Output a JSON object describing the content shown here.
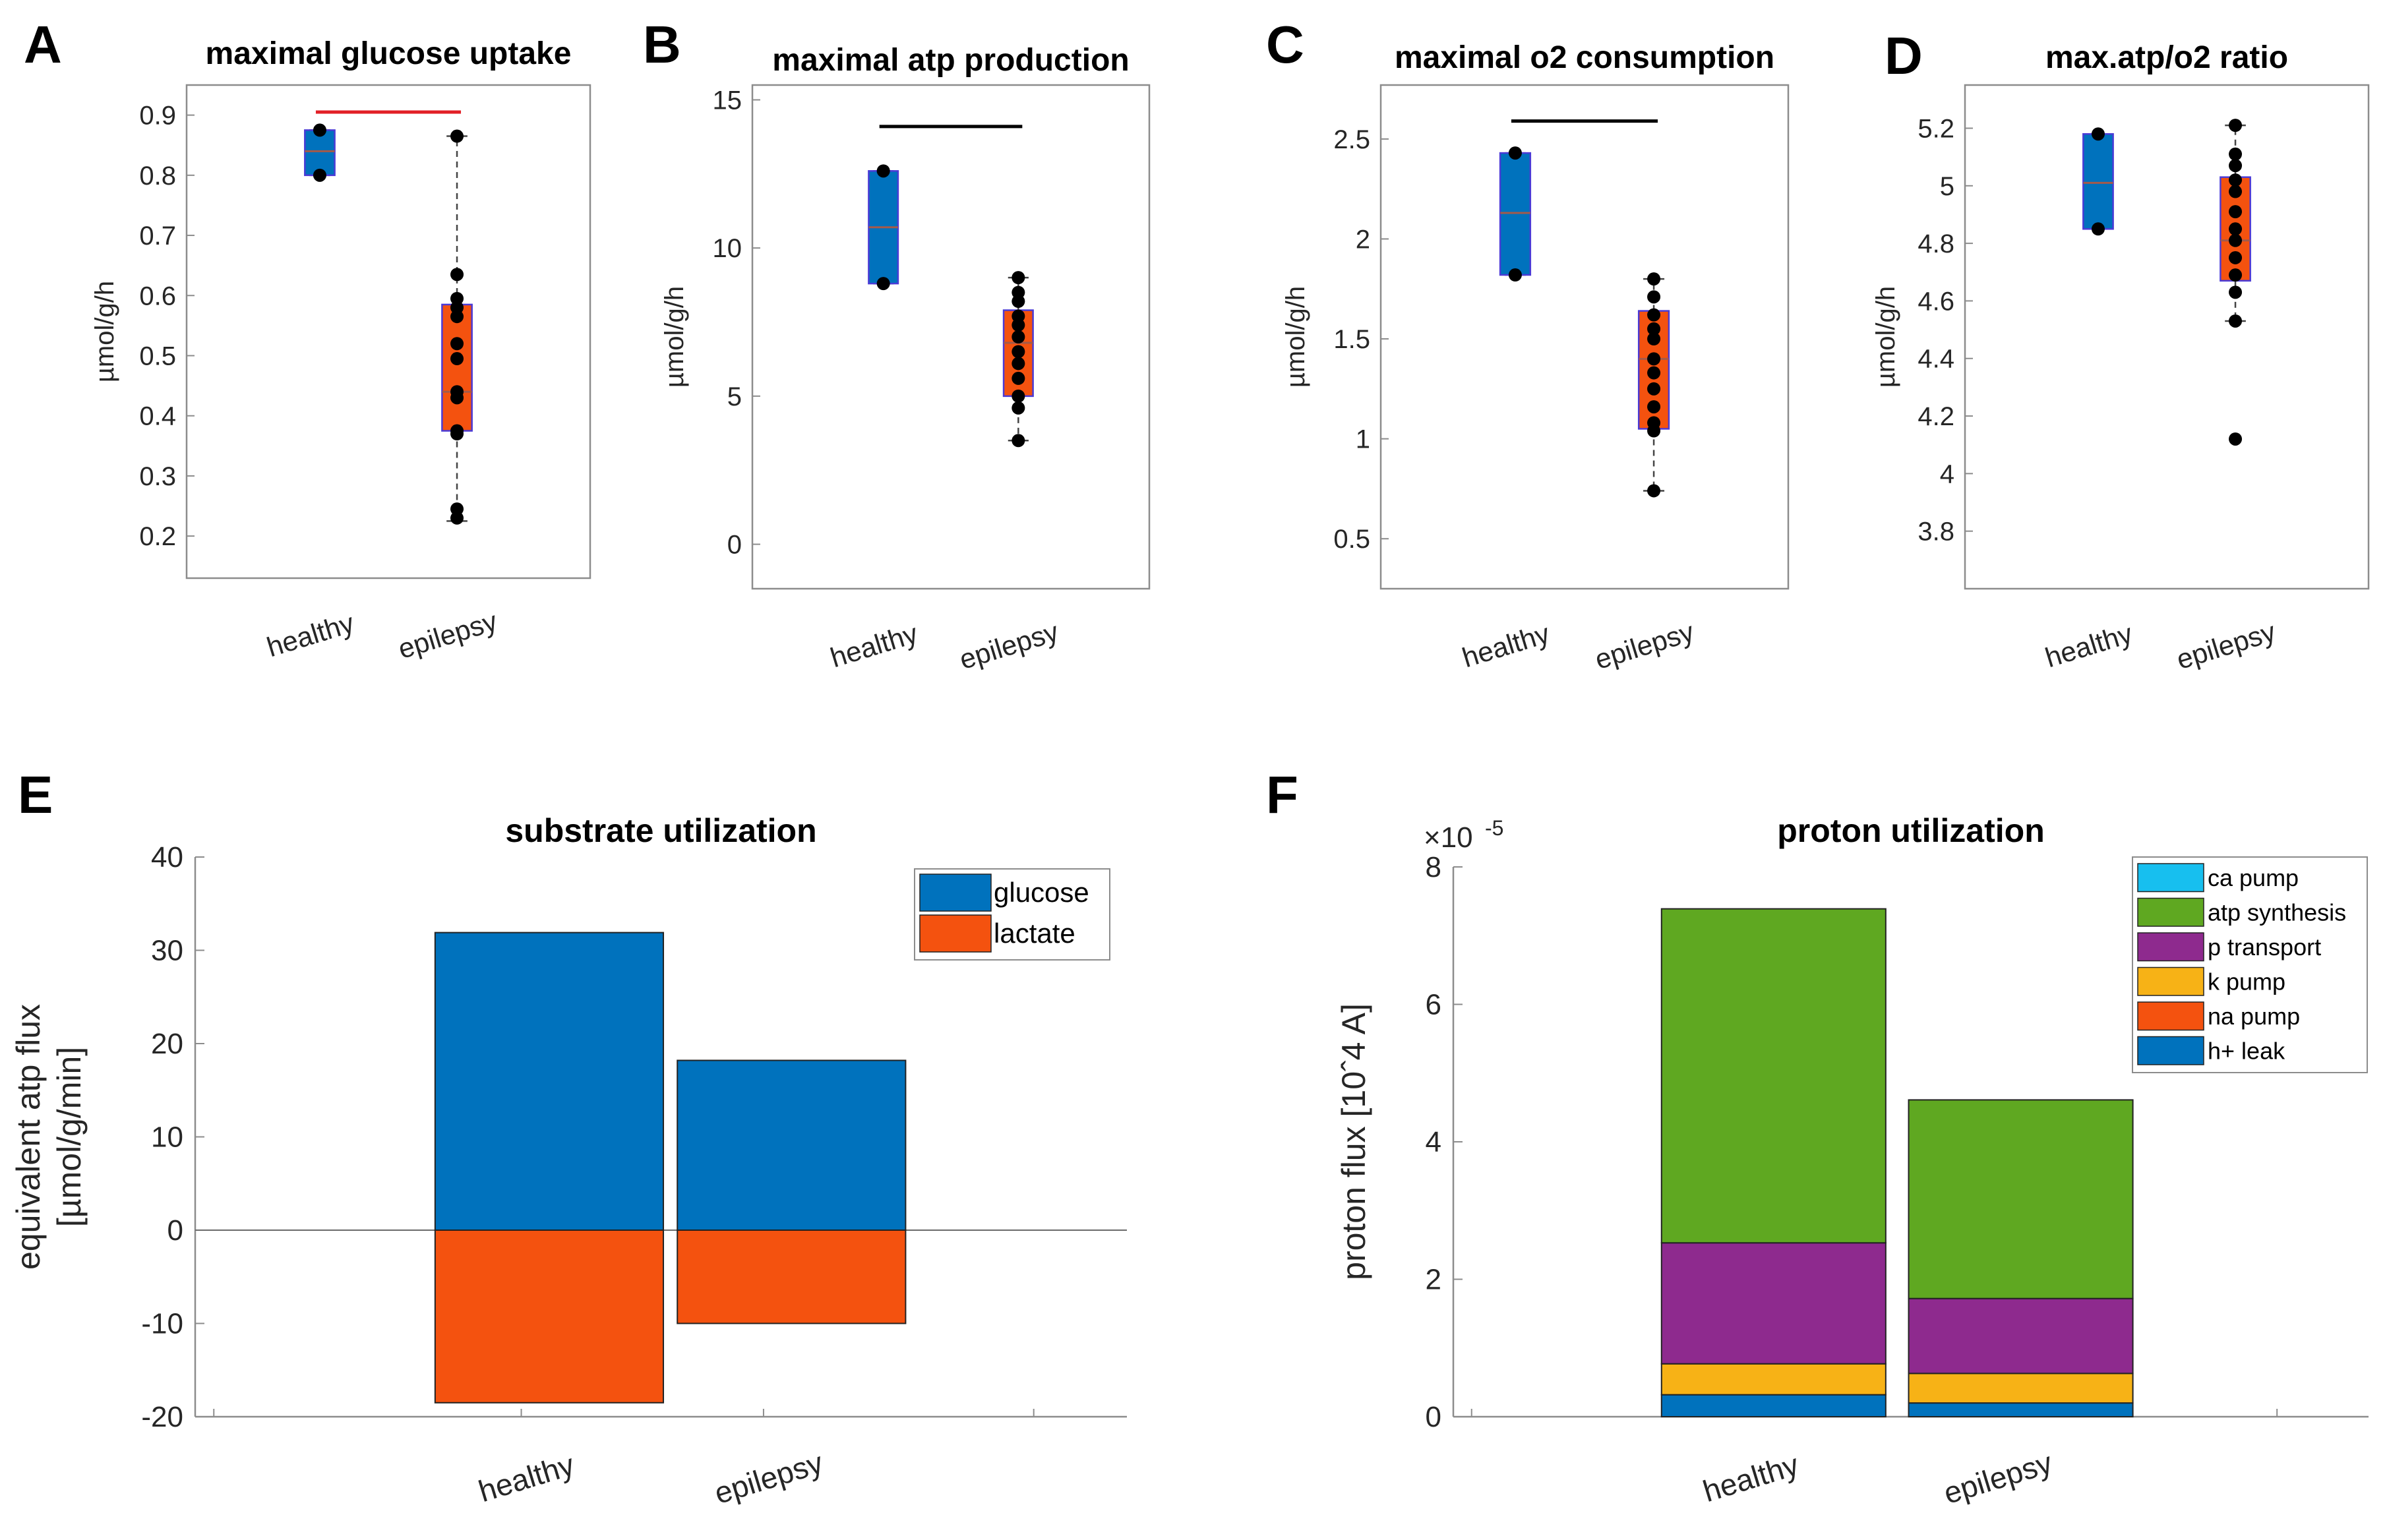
{
  "colors": {
    "healthy": "#0072BD",
    "epilepsy": "#F4520F",
    "box_edge": "#4B3BD6",
    "median": "#A45A4A",
    "dot": "#000000",
    "sig_red": "#E21F26",
    "sig_black": "#000000",
    "axis": "#262626",
    "frame": "#8C8C8C"
  },
  "chart_data": [
    {
      "id": "A",
      "panel_label": "A",
      "type": "box",
      "title": "maximal glucose uptake",
      "xlabel": "",
      "ylabel": "µmol/g/h",
      "categories": [
        "healthy",
        "epilepsy"
      ],
      "ylim": [
        0.13,
        0.95
      ],
      "yticks": [
        0.2,
        0.3,
        0.4,
        0.5,
        0.6,
        0.7,
        0.8,
        0.9
      ],
      "ytick_labels": [
        "0.2",
        "0.3",
        "0.4",
        "0.5",
        "0.6",
        "0.7",
        "0.8",
        "0.9"
      ],
      "boxes": [
        {
          "name": "healthy",
          "q1": 0.8,
          "median": 0.84,
          "q3": 0.875,
          "whisker_low": 0.8,
          "whisker_high": 0.875,
          "points": [
            0.875,
            0.8
          ]
        },
        {
          "name": "epilepsy",
          "q1": 0.375,
          "median": 0.44,
          "q3": 0.585,
          "whisker_low": 0.225,
          "whisker_high": 0.865,
          "points": [
            0.865,
            0.635,
            0.595,
            0.58,
            0.565,
            0.52,
            0.495,
            0.44,
            0.43,
            0.375,
            0.37,
            0.245,
            0.23
          ]
        }
      ],
      "significance": {
        "value": 0.905,
        "color": "red"
      }
    },
    {
      "id": "B",
      "panel_label": "B",
      "type": "box",
      "title": "maximal atp production",
      "xlabel": "",
      "ylabel": "µmol/g/h",
      "categories": [
        "healthy",
        "epilepsy"
      ],
      "ylim": [
        -1.5,
        15.5
      ],
      "yticks": [
        0,
        5,
        10,
        15
      ],
      "ytick_labels": [
        "0",
        "5",
        "10",
        "15"
      ],
      "boxes": [
        {
          "name": "healthy",
          "q1": 8.8,
          "median": 10.7,
          "q3": 12.6,
          "whisker_low": 8.8,
          "whisker_high": 12.6,
          "points": [
            12.6,
            8.8
          ]
        },
        {
          "name": "epilepsy",
          "q1": 5.0,
          "median": 6.8,
          "q3": 7.9,
          "whisker_low": 3.5,
          "whisker_high": 9.0,
          "points": [
            9.0,
            8.5,
            8.2,
            7.7,
            7.4,
            7.0,
            6.5,
            6.1,
            5.6,
            5.0,
            4.6,
            3.5
          ]
        }
      ],
      "significance": {
        "value": 14.1,
        "color": "black"
      }
    },
    {
      "id": "C",
      "panel_label": "C",
      "type": "box",
      "title": "maximal o2 consumption",
      "xlabel": "",
      "ylabel": "µmol/g/h",
      "categories": [
        "healthy",
        "epilepsy"
      ],
      "ylim": [
        0.25,
        2.77
      ],
      "yticks": [
        0.5,
        1,
        1.5,
        2,
        2.5
      ],
      "ytick_labels": [
        "0.5",
        "1",
        "1.5",
        "2",
        "2.5"
      ],
      "boxes": [
        {
          "name": "healthy",
          "q1": 1.82,
          "median": 2.13,
          "q3": 2.43,
          "whisker_low": 1.82,
          "whisker_high": 2.43,
          "points": [
            2.43,
            1.82
          ]
        },
        {
          "name": "epilepsy",
          "q1": 1.05,
          "median": 1.4,
          "q3": 1.64,
          "whisker_low": 0.74,
          "whisker_high": 1.8,
          "points": [
            1.8,
            1.71,
            1.62,
            1.55,
            1.5,
            1.4,
            1.33,
            1.25,
            1.16,
            1.08,
            1.04,
            0.74
          ]
        }
      ],
      "significance": {
        "value": 2.59,
        "color": "black"
      }
    },
    {
      "id": "D",
      "panel_label": "D",
      "type": "box",
      "title": "max.atp/o2 ratio",
      "xlabel": "",
      "ylabel": "µmol/g/h",
      "categories": [
        "healthy",
        "epilepsy"
      ],
      "ylim": [
        3.6,
        5.35
      ],
      "yticks": [
        3.8,
        4,
        4.2,
        4.4,
        4.6,
        4.8,
        5,
        5.2
      ],
      "ytick_labels": [
        "3.8",
        "4",
        "4.2",
        "4.4",
        "4.6",
        "4.8",
        "5",
        "5.2"
      ],
      "boxes": [
        {
          "name": "healthy",
          "q1": 4.85,
          "median": 5.01,
          "q3": 5.18,
          "whisker_low": 4.85,
          "whisker_high": 5.18,
          "points": [
            5.18,
            4.85
          ]
        },
        {
          "name": "epilepsy",
          "q1": 4.67,
          "median": 4.81,
          "q3": 5.03,
          "whisker_low": 4.53,
          "whisker_high": 5.21,
          "points": [
            5.21,
            5.11,
            5.07,
            5.02,
            4.98,
            4.91,
            4.85,
            4.81,
            4.75,
            4.69,
            4.63,
            4.53,
            4.12
          ]
        }
      ],
      "significance": null
    },
    {
      "id": "E",
      "panel_label": "E",
      "type": "bar",
      "title": "substrate utilization",
      "xlabel": "",
      "ylabel": "equivalent atp flux",
      "ylabel2": "[µmol/g/min]",
      "categories": [
        "healthy",
        "epilepsy"
      ],
      "ylim": [
        -20,
        40
      ],
      "yticks": [
        -20,
        -10,
        0,
        10,
        20,
        30,
        40
      ],
      "ytick_labels": [
        "-20",
        "-10",
        "0",
        "10",
        "20",
        "30",
        "40"
      ],
      "series": [
        {
          "name": "glucose",
          "color": "#0072BD",
          "values": [
            31.9,
            18.2
          ]
        },
        {
          "name": "lactate",
          "color": "#F4520F",
          "values": [
            -18.5,
            -10.0
          ]
        }
      ],
      "legend": "top-right"
    },
    {
      "id": "F",
      "panel_label": "F",
      "type": "bar",
      "stacked": true,
      "title": "proton utilization",
      "xlabel": "",
      "ylabel": "proton flux [10ˆ4 A]",
      "exponent_label": "×10",
      "exponent_power": "-5",
      "categories": [
        "healthy",
        "epilepsy"
      ],
      "ylim": [
        0,
        8
      ],
      "yticks": [
        0,
        2,
        4,
        6,
        8
      ],
      "ytick_labels": [
        "0",
        "2",
        "4",
        "6",
        "8"
      ],
      "series": [
        {
          "name": "h+ leak",
          "color": "#0072BD",
          "values": [
            0.32,
            0.2
          ]
        },
        {
          "name": "na pump",
          "color": "#F4520F",
          "values": [
            0.0,
            0.0
          ]
        },
        {
          "name": "k pump",
          "color": "#F7B216",
          "values": [
            0.45,
            0.43
          ]
        },
        {
          "name": "p transport",
          "color": "#8E2A8E",
          "values": [
            1.76,
            1.09
          ]
        },
        {
          "name": "atp synthesis",
          "color": "#5FA821",
          "values": [
            4.86,
            2.89
          ]
        },
        {
          "name": "ca pump",
          "color": "#17BFEF",
          "values": [
            0.0,
            0.0
          ]
        }
      ],
      "legend_order": [
        "ca pump",
        "atp synthesis",
        "p transport",
        "k pump",
        "na pump",
        "h+ leak"
      ],
      "legend": "top-right"
    }
  ]
}
